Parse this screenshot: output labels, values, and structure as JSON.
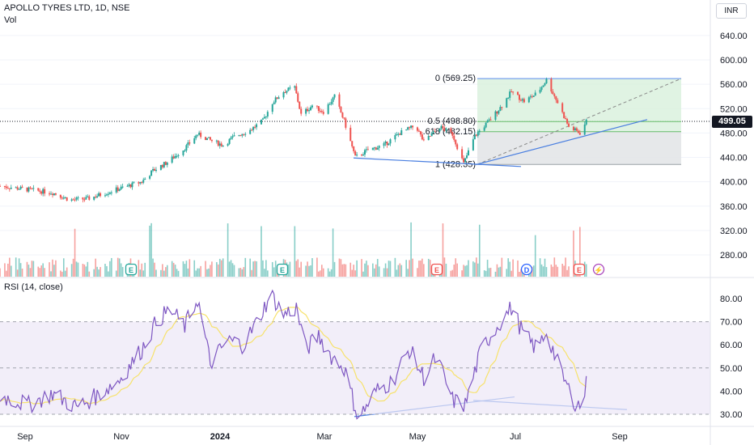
{
  "header": {
    "title": "APOLLO TYRES LTD, 1D, NSE",
    "volume_label": "Vol",
    "currency": "INR",
    "last_price": "499.05"
  },
  "rsi": {
    "label": "RSI (14, close)"
  },
  "fib": {
    "levels": [
      {
        "label": "0 (569.25)",
        "value": 569.25
      },
      {
        "label": "0.5 (498.80)",
        "value": 498.8
      },
      {
        "label": ".618 (482.15)",
        "value": 482.15
      },
      {
        "label": "1 (428.35)",
        "value": 428.35
      }
    ]
  },
  "events": [
    "E",
    "E",
    "E",
    "D",
    "E",
    "⚡"
  ],
  "colors": {
    "up": "#26a69a",
    "down": "#ef5350",
    "rsi_line": "#7e57c2",
    "rsi_ma": "#f7e26b",
    "trend": "#4a7fe0",
    "fib_green": "#d8f0dc",
    "fib_gray": "#e3e5e8"
  },
  "chart_data": {
    "type": "candlestick",
    "title": "APOLLO TYRES LTD, 1D, NSE",
    "price_axis_ticks": [
      "640.00",
      "600.00",
      "560.00",
      "520.00",
      "480.00",
      "440.00",
      "400.00",
      "360.00",
      "320.00",
      "280.00"
    ],
    "time_axis_ticks": [
      "Sep",
      "Nov",
      "2024",
      "Mar",
      "May",
      "Jul",
      "Sep"
    ],
    "rsi_axis_ticks": [
      "80.00",
      "70.00",
      "60.00",
      "50.00",
      "40.00",
      "30.00"
    ],
    "ylim": [
      258,
      662
    ],
    "price_path": [
      [
        "2023-08-18",
        393
      ],
      [
        "2023-09-05",
        387
      ],
      [
        "2023-09-20",
        382
      ],
      [
        "2023-10-01",
        370
      ],
      [
        "2023-10-12",
        372
      ],
      [
        "2023-10-25",
        383
      ],
      [
        "2023-11-05",
        392
      ],
      [
        "2023-11-15",
        400
      ],
      [
        "2023-11-22",
        418
      ],
      [
        "2023-12-01",
        432
      ],
      [
        "2023-12-12",
        455
      ],
      [
        "2023-12-20",
        478
      ],
      [
        "2023-12-28",
        468
      ],
      [
        "2024-01-05",
        460
      ],
      [
        "2024-01-12",
        474
      ],
      [
        "2024-01-22",
        485
      ],
      [
        "2024-01-30",
        500
      ],
      [
        "2024-02-05",
        530
      ],
      [
        "2024-02-12",
        548
      ],
      [
        "2024-02-19",
        555
      ],
      [
        "2024-02-23",
        510
      ],
      [
        "2024-03-01",
        525
      ],
      [
        "2024-03-08",
        515
      ],
      [
        "2024-03-15",
        540
      ],
      [
        "2024-03-21",
        500
      ],
      [
        "2024-03-28",
        440
      ],
      [
        "2024-04-05",
        452
      ],
      [
        "2024-04-15",
        460
      ],
      [
        "2024-04-25",
        480
      ],
      [
        "2024-05-05",
        492
      ],
      [
        "2024-05-10",
        465
      ],
      [
        "2024-05-20",
        490
      ],
      [
        "2024-05-28",
        478
      ],
      [
        "2024-06-04",
        430
      ],
      [
        "2024-06-11",
        475
      ],
      [
        "2024-06-20",
        500
      ],
      [
        "2024-06-28",
        525
      ],
      [
        "2024-07-04",
        548
      ],
      [
        "2024-07-12",
        532
      ],
      [
        "2024-07-20",
        545
      ],
      [
        "2024-07-26",
        567
      ],
      [
        "2024-08-02",
        530
      ],
      [
        "2024-08-09",
        490
      ],
      [
        "2024-08-16",
        480
      ],
      [
        "2024-08-20",
        499.05
      ]
    ],
    "rsi_path": [
      [
        "2023-08-18",
        38
      ],
      [
        "2023-09-05",
        34
      ],
      [
        "2023-09-20",
        39
      ],
      [
        "2023-10-05",
        33
      ],
      [
        "2023-10-18",
        38
      ],
      [
        "2023-11-01",
        45
      ],
      [
        "2023-11-15",
        58
      ],
      [
        "2023-11-25",
        71
      ],
      [
        "2023-12-03",
        75
      ],
      [
        "2023-12-12",
        68
      ],
      [
        "2023-12-20",
        80
      ],
      [
        "2023-12-28",
        52
      ],
      [
        "2024-01-08",
        62
      ],
      [
        "2024-01-18",
        60
      ],
      [
        "2024-01-28",
        72
      ],
      [
        "2024-02-04",
        82
      ],
      [
        "2024-02-12",
        73
      ],
      [
        "2024-02-20",
        76
      ],
      [
        "2024-02-26",
        58
      ],
      [
        "2024-03-05",
        64
      ],
      [
        "2024-03-13",
        55
      ],
      [
        "2024-03-21",
        50
      ],
      [
        "2024-03-30",
        28
      ],
      [
        "2024-04-10",
        40
      ],
      [
        "2024-04-20",
        44
      ],
      [
        "2024-05-01",
        58
      ],
      [
        "2024-05-10",
        46
      ],
      [
        "2024-05-18",
        55
      ],
      [
        "2024-05-28",
        36
      ],
      [
        "2024-06-05",
        34
      ],
      [
        "2024-06-15",
        58
      ],
      [
        "2024-06-25",
        68
      ],
      [
        "2024-07-04",
        76
      ],
      [
        "2024-07-12",
        64
      ],
      [
        "2024-07-20",
        58
      ],
      [
        "2024-07-26",
        66
      ],
      [
        "2024-08-04",
        48
      ],
      [
        "2024-08-12",
        36
      ],
      [
        "2024-08-17",
        33
      ],
      [
        "2024-08-20",
        43
      ]
    ]
  }
}
